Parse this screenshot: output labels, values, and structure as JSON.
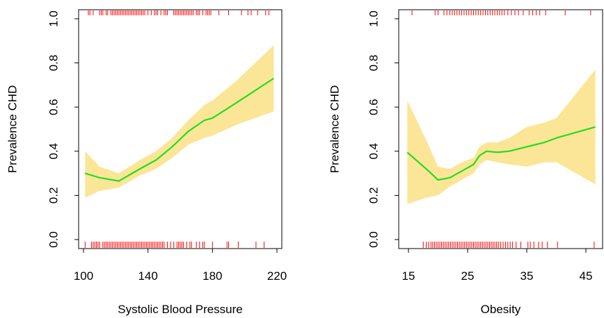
{
  "chart_data": [
    {
      "type": "line",
      "xlabel": "Systolic Blood Pressure",
      "ylabel": "Prevalence CHD",
      "xlim": [
        100,
        220
      ],
      "ylim": [
        0,
        1
      ],
      "xticks": [
        "100",
        "140",
        "180",
        "220"
      ],
      "yticks": [
        "0.0",
        "0.2",
        "0.4",
        "0.6",
        "0.8",
        "1.0"
      ],
      "grid": false,
      "colors": {
        "fit": "#22DD22",
        "band": "#FBE697",
        "rug": "#FF0000"
      },
      "x": [
        101,
        110,
        122,
        135,
        145,
        155,
        165,
        175,
        180,
        195,
        218
      ],
      "fit": [
        0.3,
        0.28,
        0.265,
        0.32,
        0.36,
        0.42,
        0.49,
        0.54,
        0.55,
        0.62,
        0.73
      ],
      "upper": [
        0.4,
        0.33,
        0.3,
        0.36,
        0.4,
        0.46,
        0.54,
        0.61,
        0.63,
        0.72,
        0.88
      ],
      "lower": [
        0.19,
        0.22,
        0.235,
        0.29,
        0.32,
        0.37,
        0.43,
        0.46,
        0.47,
        0.52,
        0.58
      ],
      "rug_chd1": [
        103,
        104,
        106,
        110,
        111,
        112,
        114,
        115,
        117,
        118,
        119,
        120,
        121,
        122,
        123,
        124,
        125,
        126,
        127,
        128,
        129,
        130,
        131,
        132,
        133,
        134,
        135,
        136,
        137,
        138,
        140,
        142,
        144,
        145,
        146,
        148,
        150,
        151,
        152,
        156,
        157,
        158,
        159,
        160,
        161,
        162,
        163,
        164,
        165,
        166,
        167,
        168,
        170,
        171,
        172,
        174,
        176,
        177,
        178,
        179,
        184,
        190,
        198,
        202,
        204,
        208,
        213,
        215
      ],
      "rug_chd0": [
        101,
        105,
        106,
        107,
        108,
        109,
        110,
        112,
        113,
        114,
        115,
        116,
        117,
        118,
        119,
        120,
        121,
        122,
        123,
        124,
        125,
        126,
        127,
        128,
        129,
        130,
        131,
        132,
        133,
        134,
        135,
        136,
        137,
        138,
        139,
        140,
        141,
        142,
        143,
        144,
        145,
        146,
        147,
        148,
        149,
        150,
        152,
        154,
        156,
        158,
        159,
        160,
        161,
        162,
        164,
        166,
        167,
        170,
        172,
        174,
        175,
        180,
        189,
        190,
        196,
        207,
        212
      ]
    },
    {
      "type": "line",
      "xlabel": "Obesity",
      "ylabel": "Prevalence CHD",
      "xlim": [
        15,
        45
      ],
      "ylim": [
        0,
        1
      ],
      "xticks": [
        "15",
        "25",
        "35",
        "45"
      ],
      "yticks": [
        "0.0",
        "0.2",
        "0.4",
        "0.6",
        "0.8",
        "1.0"
      ],
      "grid": false,
      "colors": {
        "fit": "#22DD22",
        "band": "#FBE697",
        "rug": "#FF0000"
      },
      "x": [
        14.8,
        18,
        20,
        22,
        24,
        26,
        27,
        28.2,
        30,
        32,
        35,
        38,
        40,
        46.6
      ],
      "fit": [
        0.395,
        0.32,
        0.27,
        0.28,
        0.31,
        0.34,
        0.38,
        0.4,
        0.395,
        0.4,
        0.42,
        0.44,
        0.46,
        0.51
      ],
      "upper": [
        0.63,
        0.45,
        0.33,
        0.32,
        0.35,
        0.37,
        0.42,
        0.44,
        0.44,
        0.46,
        0.51,
        0.53,
        0.55,
        0.77
      ],
      "lower": [
        0.16,
        0.19,
        0.2,
        0.24,
        0.27,
        0.3,
        0.34,
        0.36,
        0.35,
        0.34,
        0.33,
        0.35,
        0.35,
        0.25
      ],
      "rug_chd1": [
        15.6,
        19.5,
        20,
        21,
        21.5,
        22,
        22.4,
        22.8,
        23.2,
        23.6,
        24,
        24.4,
        24.8,
        25.2,
        25.6,
        26,
        26.4,
        26.8,
        27.2,
        27.6,
        28,
        28.4,
        28.8,
        29.2,
        29.6,
        30,
        30.4,
        30.8,
        31.2,
        31.8,
        32.4,
        33,
        33.6,
        34.4,
        35.4,
        36,
        36.6,
        37.2,
        38.2,
        41.5,
        45.8
      ],
      "rug_chd0": [
        17.5,
        18,
        18.4,
        18.8,
        19.1,
        19.4,
        19.7,
        20,
        20.3,
        20.6,
        20.9,
        21.2,
        21.5,
        21.8,
        22.1,
        22.4,
        22.7,
        23,
        23.3,
        23.6,
        23.9,
        24.2,
        24.5,
        24.8,
        25.1,
        25.4,
        25.7,
        26,
        26.3,
        26.6,
        26.9,
        27.2,
        27.5,
        27.8,
        28.1,
        28.4,
        28.7,
        29,
        29.3,
        29.6,
        29.9,
        30.2,
        30.6,
        31,
        31.4,
        31.8,
        32.2,
        32.6,
        33.2,
        34,
        35.2,
        35.6,
        36.2,
        37,
        37.6,
        38.5,
        40.2,
        46.4
      ]
    }
  ]
}
